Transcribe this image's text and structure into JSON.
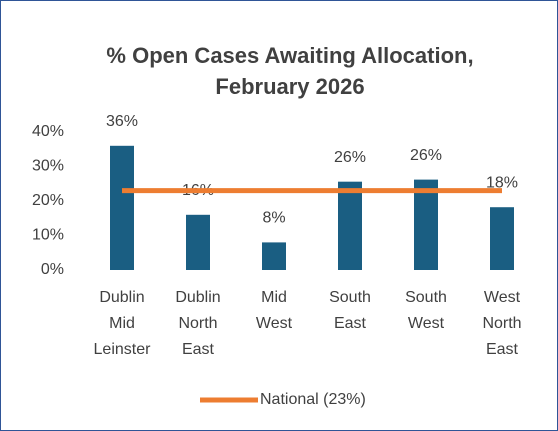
{
  "chart_data": {
    "type": "bar",
    "title": [
      "% Open Cases Awaiting Allocation,",
      "February 2026"
    ],
    "categories": [
      [
        "Dublin",
        "Mid",
        "Leinster"
      ],
      [
        "Dublin",
        "North",
        "East"
      ],
      [
        "Mid",
        "West"
      ],
      [
        "South",
        "East"
      ],
      [
        "South",
        "West"
      ],
      [
        "West",
        "North",
        "East"
      ]
    ],
    "series": [
      {
        "name": null,
        "type": "bar",
        "color": "#1a5e82",
        "values": [
          36,
          16,
          8,
          25.6,
          26.2,
          18.2
        ],
        "value_labels": [
          "36%",
          "16%",
          "8%",
          "26%",
          "26%",
          "18%"
        ]
      },
      {
        "name": "National (23%)",
        "type": "line",
        "color": "#ed7d31",
        "values": [
          23,
          23,
          23,
          23,
          23,
          23
        ]
      }
    ],
    "ylim": [
      0,
      40
    ],
    "yticks": [
      {
        "value": 0,
        "label": "0%"
      },
      {
        "value": 10,
        "label": "10%"
      },
      {
        "value": 20,
        "label": "20%"
      },
      {
        "value": 30,
        "label": "30%"
      },
      {
        "value": 40,
        "label": "40%"
      }
    ],
    "legend": "bottom"
  }
}
